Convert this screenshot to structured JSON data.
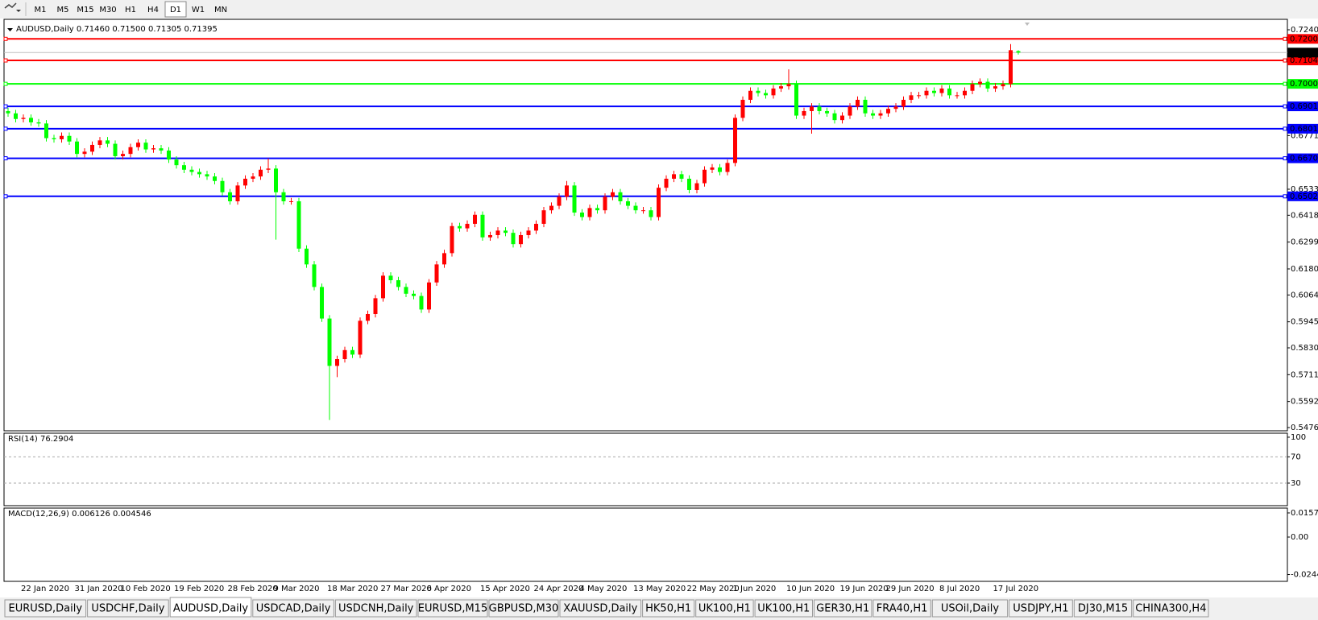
{
  "toolbar": {
    "timeframes": [
      "M1",
      "M5",
      "M15",
      "M30",
      "H1",
      "H4",
      "D1",
      "W1",
      "MN"
    ],
    "selected": "D1"
  },
  "chart_data": {
    "type": "candlestick",
    "title": "AUDUSD,Daily  0.71460 0.71500 0.71305 0.71395",
    "x": [
      null,
      null,
      "22 Jan 2020",
      null,
      null,
      null,
      null,
      null,
      null,
      "31 Jan 2020",
      null,
      null,
      null,
      null,
      null,
      "10 Feb 2020",
      null,
      null,
      null,
      null,
      null,
      null,
      "19 Feb 2020",
      null,
      null,
      null,
      null,
      null,
      null,
      "28 Feb 2020",
      null,
      null,
      null,
      null,
      null,
      "9 Mar 2020",
      null,
      null,
      null,
      null,
      null,
      null,
      "18 Mar 2020",
      null,
      null,
      null,
      null,
      null,
      null,
      "27 Mar 2020",
      null,
      null,
      null,
      null,
      null,
      "6 Apr 2020",
      null,
      null,
      null,
      null,
      null,
      null,
      "15 Apr 2020",
      null,
      null,
      null,
      null,
      null,
      null,
      "24 Apr 2020",
      null,
      null,
      null,
      null,
      null,
      "4 May 2020",
      null,
      null,
      null,
      null,
      null,
      null,
      "13 May 2020",
      null,
      null,
      null,
      null,
      null,
      null,
      "22 May 2020",
      null,
      null,
      null,
      null,
      null,
      "1 Jun 2020",
      null,
      null,
      null,
      null,
      null,
      null,
      "10 Jun 2020",
      null,
      null,
      null,
      null,
      null,
      null,
      "19 Jun 2020",
      null,
      null,
      null,
      null,
      null,
      "29 Jun 2020",
      null,
      null,
      null,
      null,
      null,
      null,
      "8 Jul 2020",
      null,
      null,
      null,
      null,
      null,
      null,
      "17 Jul 2020",
      null,
      null,
      null
    ],
    "open": [
      0.688,
      0.687,
      0.6845,
      0.685,
      0.683,
      0.6825,
      0.676,
      0.6755,
      0.677,
      0.6745,
      0.669,
      0.67,
      0.673,
      0.675,
      0.6735,
      0.668,
      0.669,
      0.672,
      0.674,
      0.671,
      0.6715,
      0.6705,
      0.6665,
      0.664,
      0.662,
      0.661,
      0.66,
      0.659,
      0.657,
      0.652,
      0.648,
      0.655,
      0.658,
      0.659,
      0.662,
      0.6625,
      0.652,
      0.648,
      0.648,
      0.627,
      0.62,
      0.61,
      0.596,
      0.575,
      0.578,
      0.582,
      0.58,
      0.595,
      0.598,
      0.605,
      0.615,
      0.613,
      0.61,
      0.607,
      0.606,
      0.6,
      0.612,
      0.62,
      0.625,
      0.637,
      0.636,
      0.638,
      0.642,
      0.632,
      0.633,
      0.635,
      0.634,
      0.629,
      0.633,
      0.635,
      0.638,
      0.644,
      0.646,
      0.65,
      0.655,
      0.643,
      0.641,
      0.645,
      0.644,
      0.65,
      0.652,
      0.648,
      0.646,
      0.644,
      0.644,
      0.641,
      0.654,
      0.658,
      0.66,
      0.658,
      0.653,
      0.656,
      0.662,
      0.663,
      0.661,
      0.665,
      0.685,
      0.693,
      0.697,
      0.696,
      0.695,
      0.698,
      0.699,
      0.7,
      0.686,
      0.688,
      0.69,
      0.688,
      0.687,
      0.684,
      0.686,
      0.69,
      0.693,
      0.687,
      0.686,
      0.687,
      0.689,
      0.69,
      0.693,
      0.695,
      0.695,
      0.697,
      0.696,
      0.698,
      0.695,
      0.695,
      0.697,
      0.7,
      0.701,
      0.698,
      0.699,
      0.7,
      0.7146
    ],
    "high": [
      0.6895,
      0.6885,
      0.6865,
      0.6865,
      0.6845,
      0.684,
      0.6775,
      0.6785,
      0.6785,
      0.676,
      0.6715,
      0.6745,
      0.6765,
      0.6765,
      0.675,
      0.6705,
      0.6735,
      0.6755,
      0.6755,
      0.673,
      0.673,
      0.672,
      0.668,
      0.6655,
      0.6635,
      0.6625,
      0.6615,
      0.6605,
      0.6585,
      0.6535,
      0.6565,
      0.6595,
      0.6605,
      0.6635,
      0.667,
      0.664,
      0.6535,
      0.6495,
      0.6495,
      0.6285,
      0.6215,
      0.6115,
      0.5975,
      0.5795,
      0.5835,
      0.5835,
      0.5965,
      0.5995,
      0.6065,
      0.6165,
      0.6165,
      0.6145,
      0.6115,
      0.6085,
      0.6075,
      0.6135,
      0.6215,
      0.6265,
      0.6385,
      0.6385,
      0.6395,
      0.6435,
      0.6435,
      0.6345,
      0.6365,
      0.6365,
      0.6355,
      0.6345,
      0.6365,
      0.6395,
      0.6455,
      0.6475,
      0.6515,
      0.657,
      0.6565,
      0.6445,
      0.6465,
      0.6465,
      0.6515,
      0.6535,
      0.6535,
      0.6495,
      0.6475,
      0.6455,
      0.6455,
      0.6555,
      0.6595,
      0.6615,
      0.6615,
      0.6595,
      0.6575,
      0.6635,
      0.6645,
      0.6645,
      0.6665,
      0.6865,
      0.6945,
      0.6985,
      0.6985,
      0.6975,
      0.6995,
      0.7005,
      0.7065,
      0.7015,
      0.6895,
      0.6915,
      0.6915,
      0.6895,
      0.6885,
      0.6875,
      0.6915,
      0.6945,
      0.6945,
      0.6885,
      0.6885,
      0.6905,
      0.6915,
      0.6945,
      0.6965,
      0.6965,
      0.6985,
      0.6985,
      0.6995,
      0.6995,
      0.6965,
      0.6985,
      0.7015,
      0.7025,
      0.7025,
      0.7005,
      0.7015,
      0.7177,
      0.715
    ],
    "low": [
      0.6855,
      0.683,
      0.683,
      0.6815,
      0.681,
      0.6745,
      0.674,
      0.674,
      0.673,
      0.6675,
      0.6675,
      0.6685,
      0.6715,
      0.672,
      0.6665,
      0.6665,
      0.6675,
      0.6705,
      0.6695,
      0.6695,
      0.669,
      0.665,
      0.6625,
      0.6605,
      0.6595,
      0.6585,
      0.6575,
      0.6555,
      0.6505,
      0.6465,
      0.6465,
      0.6535,
      0.6565,
      0.6575,
      0.6605,
      0.631,
      0.6465,
      0.6465,
      0.6255,
      0.6185,
      0.6085,
      0.5945,
      0.551,
      0.57,
      0.5765,
      0.5785,
      0.5785,
      0.5935,
      0.5965,
      0.6035,
      0.6115,
      0.6085,
      0.6055,
      0.6045,
      0.5985,
      0.5985,
      0.6105,
      0.6185,
      0.6235,
      0.6345,
      0.6345,
      0.6365,
      0.6305,
      0.6305,
      0.6315,
      0.6325,
      0.6275,
      0.6275,
      0.6315,
      0.6335,
      0.6365,
      0.6425,
      0.6445,
      0.6485,
      0.6415,
      0.6395,
      0.6395,
      0.6425,
      0.6425,
      0.6485,
      0.6465,
      0.6445,
      0.6425,
      0.6425,
      0.6395,
      0.6395,
      0.6525,
      0.6565,
      0.6565,
      0.6515,
      0.6515,
      0.6545,
      0.6605,
      0.6595,
      0.6595,
      0.6635,
      0.6835,
      0.6915,
      0.6945,
      0.6935,
      0.6935,
      0.6965,
      0.6975,
      0.6845,
      0.6845,
      0.678,
      0.6865,
      0.6855,
      0.6825,
      0.6825,
      0.6845,
      0.6885,
      0.6855,
      0.6845,
      0.6845,
      0.6855,
      0.6875,
      0.6885,
      0.6915,
      0.6935,
      0.6935,
      0.6945,
      0.6945,
      0.6935,
      0.6935,
      0.6935,
      0.6955,
      0.6985,
      0.6965,
      0.6965,
      0.6975,
      0.6985,
      0.71305
    ],
    "close": [
      0.687,
      0.6845,
      0.685,
      0.683,
      0.6825,
      0.676,
      0.6755,
      0.677,
      0.6745,
      0.669,
      0.67,
      0.673,
      0.675,
      0.6735,
      0.668,
      0.669,
      0.672,
      0.674,
      0.671,
      0.6715,
      0.6705,
      0.6665,
      0.664,
      0.662,
      0.661,
      0.66,
      0.659,
      0.657,
      0.652,
      0.648,
      0.655,
      0.658,
      0.659,
      0.662,
      0.6625,
      0.652,
      0.648,
      0.648,
      0.627,
      0.62,
      0.61,
      0.596,
      0.575,
      0.578,
      0.582,
      0.58,
      0.595,
      0.598,
      0.605,
      0.615,
      0.613,
      0.61,
      0.607,
      0.606,
      0.6,
      0.612,
      0.62,
      0.625,
      0.637,
      0.636,
      0.638,
      0.642,
      0.632,
      0.633,
      0.635,
      0.634,
      0.629,
      0.633,
      0.635,
      0.638,
      0.644,
      0.646,
      0.65,
      0.655,
      0.643,
      0.641,
      0.645,
      0.644,
      0.65,
      0.652,
      0.648,
      0.646,
      0.644,
      0.644,
      0.641,
      0.654,
      0.658,
      0.66,
      0.658,
      0.653,
      0.656,
      0.662,
      0.663,
      0.661,
      0.665,
      0.685,
      0.693,
      0.697,
      0.696,
      0.695,
      0.698,
      0.699,
      0.7,
      0.686,
      0.688,
      0.69,
      0.688,
      0.687,
      0.684,
      0.686,
      0.69,
      0.693,
      0.687,
      0.686,
      0.687,
      0.689,
      0.69,
      0.693,
      0.695,
      0.695,
      0.697,
      0.696,
      0.698,
      0.695,
      0.695,
      0.697,
      0.7,
      0.701,
      0.698,
      0.699,
      0.7,
      0.715,
      0.71395
    ],
    "up_color": "#ff0000",
    "down_color": "#00ff00",
    "ylim": [
      0.54622,
      0.72869
    ],
    "yticks": [
      0.72405,
      0.67715,
      0.65335,
      {
        "value": 0.6418,
        "label": "0.64180"
      },
      {
        "value": 0.6299,
        "label": "0.62990"
      },
      {
        "value": 0.618,
        "label": "0.61800"
      },
      0.60645,
      0.59455,
      {
        "value": 0.583,
        "label": "0.58300"
      },
      {
        "value": 0.5711,
        "label": "0.57110"
      },
      {
        "value": 0.5592,
        "label": "0.55920"
      },
      0.54765
    ],
    "levels": [
      {
        "value": 0.72001,
        "color": "#ff0000"
      },
      {
        "value": 0.71046,
        "color": "#ff0000"
      },
      {
        "value": 0.70007,
        "color": "#00ff00"
      },
      {
        "value": 0.6901,
        "label": "0.69010",
        "color": "#0000ff"
      },
      {
        "value": 0.68017,
        "color": "#0000ff"
      },
      {
        "value": 0.66706,
        "color": "#0000ff"
      },
      {
        "value": 0.6502,
        "label": "0.65020",
        "color": "#0000ff"
      }
    ],
    "last_price": 0.71395
  },
  "rsi": {
    "title": "RSI(14) 76.2904",
    "ylim": [
      -4.4,
      106.1
    ],
    "yticks": [
      100,
      70,
      30
    ],
    "levels": [
      70,
      30
    ]
  },
  "macd": {
    "title": "MACD(12,26,9) 0.006126 0.004546",
    "ylim": [
      -0.02885,
      0.01889
    ],
    "yticks": [
      0.01574,
      {
        "value": 0,
        "label": "0.00"
      },
      -0.02441
    ]
  },
  "tabs": {
    "items": [
      "EURUSD,Daily",
      "USDCHF,Daily",
      "AUDUSD,Daily",
      "USDCAD,Daily",
      "USDCNH,Daily",
      "EURUSD,M15",
      "GBPUSD,M30",
      "XAUUSD,Daily",
      "HK50,H1",
      "UK100,H1",
      "UK100,H1",
      "GER30,H1",
      "FRA40,H1",
      "USOil,Daily",
      "USDJPY,H1",
      "DJ30,M15",
      "CHINA300,H4"
    ],
    "selected": "AUDUSD,Daily"
  }
}
